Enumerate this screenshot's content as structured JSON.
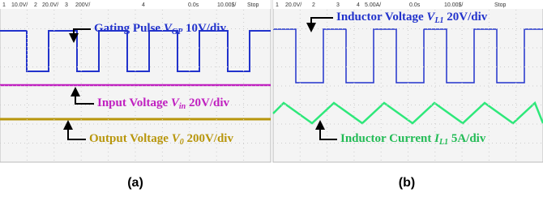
{
  "panels": [
    {
      "header": [
        "1",
        "10.0V/",
        "2",
        "20.0V/",
        "3",
        "200V/",
        "4",
        "0.0s",
        "10.00$/",
        "Stop"
      ],
      "labels": [
        {
          "text": "Gating Pulse ",
          "var": "V",
          "sub": "GP",
          "unit": " 10V/div"
        },
        {
          "text": "Input Voltage ",
          "var": "V",
          "sub": "in",
          "unit": " 20V/div"
        },
        {
          "text": "Output Voltage ",
          "var": "V",
          "sub": "0",
          "unit": " 200V/div"
        }
      ],
      "caption": "(a)"
    },
    {
      "header": [
        "1",
        "20.0V/",
        "2",
        "3",
        "4",
        "5.00A/",
        "0.0s",
        "10.00$/",
        "Stop"
      ],
      "labels": [
        {
          "text": "Inductor Voltage ",
          "var": "V",
          "sub": "L1",
          "unit": " 20V/div"
        },
        {
          "text": "Inductor Current ",
          "var": "I",
          "sub": "L1",
          "unit": " 5A/div"
        }
      ],
      "caption": "(b)"
    }
  ]
}
